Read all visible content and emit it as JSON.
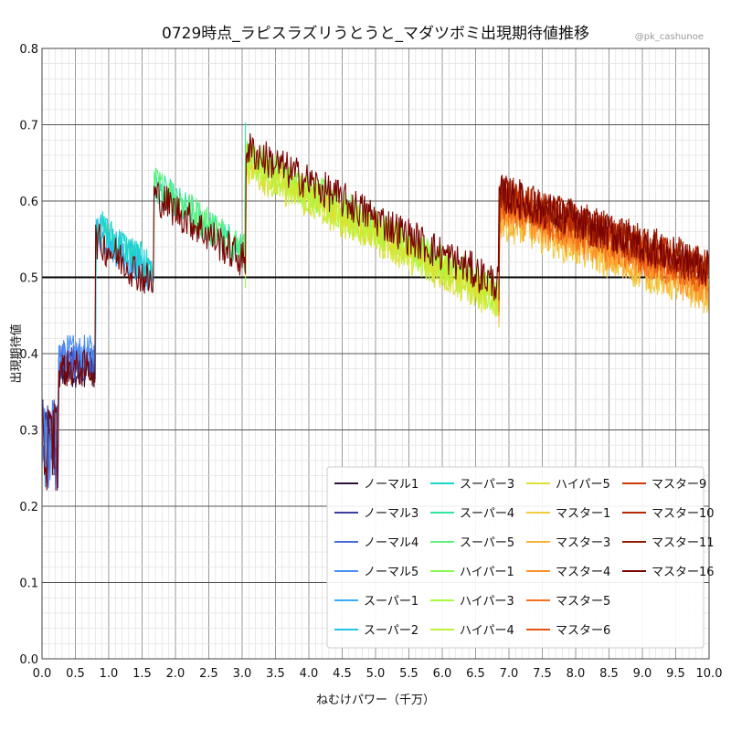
{
  "chart_data": {
    "type": "line",
    "title": "0729時点_ラピスラズリうとうと_マダツボミ出現期待値推移",
    "credit": "@pk_cashunoe",
    "xlabel": "ねむけパワー（千万）",
    "ylabel": "出現期待値",
    "xlim": [
      0.0,
      10.0
    ],
    "ylim": [
      0.0,
      0.8
    ],
    "xticks": [
      "0.0",
      "0.5",
      "1.0",
      "1.5",
      "2.0",
      "2.5",
      "3.0",
      "3.5",
      "4.0",
      "4.5",
      "5.0",
      "5.5",
      "6.0",
      "6.5",
      "7.0",
      "7.5",
      "8.0",
      "8.5",
      "9.0",
      "9.5",
      "10.0"
    ],
    "yticks": [
      "0.0",
      "0.1",
      "0.2",
      "0.3",
      "0.4",
      "0.5",
      "0.6",
      "0.7",
      "0.8"
    ],
    "grid": true,
    "reference_line": 0.5,
    "legend_position": "bottom-right",
    "segments": [
      {
        "x_start": 0.0,
        "x_end": 0.8,
        "y_start": 0.38,
        "y_end": 0.38
      },
      {
        "x_start": 0.8,
        "x_end": 1.67,
        "y_start": 0.55,
        "y_end": 0.49
      },
      {
        "x_start": 1.67,
        "x_end": 3.05,
        "y_start": 0.61,
        "y_end": 0.52
      },
      {
        "x_start": 3.05,
        "x_end": 6.85,
        "y_start": 0.67,
        "y_end": 0.49
      },
      {
        "x_start": 6.85,
        "x_end": 10.0,
        "y_start": 0.61,
        "y_end": 0.51
      }
    ],
    "series": [
      {
        "name": "ノーマル1",
        "color": "#30123b",
        "start": 0.0,
        "end": 0.8,
        "offset": 0.0
      },
      {
        "name": "ノーマル3",
        "color": "#3b3f9e",
        "start": 0.0,
        "end": 0.8,
        "offset": 0.005
      },
      {
        "name": "ノーマル4",
        "color": "#4669e0",
        "start": 0.0,
        "end": 0.8,
        "offset": 0.01
      },
      {
        "name": "ノーマル5",
        "color": "#4a8ff7",
        "start": 0.0,
        "end": 0.8,
        "offset": 0.02
      },
      {
        "name": "スーパー1",
        "color": "#3aabf8",
        "start": 0.8,
        "end": 1.67,
        "offset": 0.01
      },
      {
        "name": "スーパー2",
        "color": "#23c4e3",
        "start": 0.8,
        "end": 1.67,
        "offset": 0.015
      },
      {
        "name": "スーパー3",
        "color": "#1ad7c8",
        "start": 0.8,
        "end": 1.67,
        "offset": 0.02
      },
      {
        "name": "スーパー4",
        "color": "#2ee6a0",
        "start": 1.67,
        "end": 3.05,
        "offset": 0.01
      },
      {
        "name": "スーパー5",
        "color": "#5cf277",
        "start": 1.67,
        "end": 3.05,
        "offset": 0.015
      },
      {
        "name": "ハイパー1",
        "color": "#86fb53",
        "start": 3.05,
        "end": 6.85,
        "offset": -0.01
      },
      {
        "name": "ハイパー3",
        "color": "#a6fd3c",
        "start": 3.05,
        "end": 6.85,
        "offset": -0.015
      },
      {
        "name": "ハイパー4",
        "color": "#c1f334",
        "start": 3.05,
        "end": 6.85,
        "offset": -0.02
      },
      {
        "name": "ハイパー5",
        "color": "#dbe235",
        "start": 3.05,
        "end": 6.85,
        "offset": -0.025
      },
      {
        "name": "マスター1",
        "color": "#f0cb3a",
        "start": 6.85,
        "end": 10.0,
        "offset": -0.035
      },
      {
        "name": "マスター3",
        "color": "#fbb138",
        "start": 6.85,
        "end": 10.0,
        "offset": -0.03
      },
      {
        "name": "マスター4",
        "color": "#fd922a",
        "start": 6.85,
        "end": 10.0,
        "offset": -0.022
      },
      {
        "name": "マスター5",
        "color": "#f4711c",
        "start": 6.85,
        "end": 10.0,
        "offset": -0.015
      },
      {
        "name": "マスター6",
        "color": "#e4550f",
        "start": 6.85,
        "end": 10.0,
        "offset": -0.008
      },
      {
        "name": "マスター9",
        "color": "#cf3b07",
        "start": 6.85,
        "end": 10.0,
        "offset": -0.003
      },
      {
        "name": "マスター10",
        "color": "#b32904",
        "start": 6.85,
        "end": 10.0,
        "offset": 0.0
      },
      {
        "name": "マスター11",
        "color": "#951a02",
        "start": 6.85,
        "end": 10.0,
        "offset": 0.004
      },
      {
        "name": "マスター16",
        "color": "#7a0403",
        "start": 0.0,
        "end": 10.0,
        "offset": 0.0
      }
    ]
  }
}
